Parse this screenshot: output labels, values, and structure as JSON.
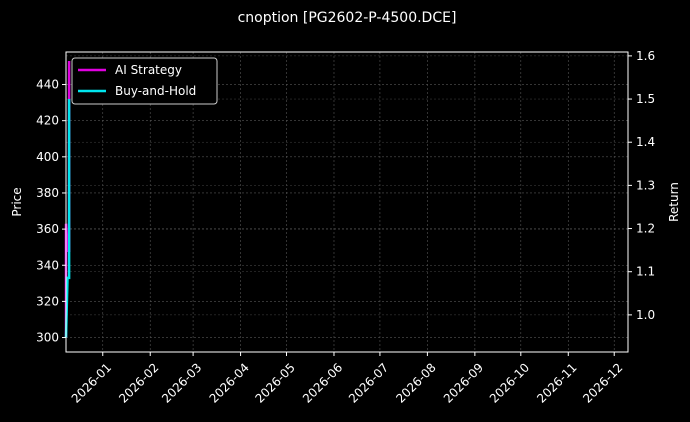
{
  "chart_data": {
    "type": "line",
    "title": "cnoption [PG2602-P-4500.DCE]",
    "ylabel": "Price",
    "y2label": "Return",
    "xlim": [
      "2025-12-08",
      "2026-12-10"
    ],
    "ylim": [
      292,
      458
    ],
    "y2lim": [
      0.914,
      1.609
    ],
    "x_ticks": [
      "2026-01",
      "2026-02",
      "2026-03",
      "2026-04",
      "2026-05",
      "2026-06",
      "2026-07",
      "2026-08",
      "2026-09",
      "2026-10",
      "2026-11",
      "2026-12"
    ],
    "y_ticks": [
      300,
      320,
      340,
      360,
      380,
      400,
      420,
      440
    ],
    "y2_ticks": [
      "1.0",
      "1.1",
      "1.2",
      "1.3",
      "1.4",
      "1.5",
      "1.6"
    ],
    "grid": true,
    "legend": "top-left",
    "series": [
      {
        "name": "AI Strategy",
        "color": "#e000e0",
        "x": [
          "2025-12-08",
          "2025-12-08",
          "2025-12-09",
          "2025-12-10",
          "2025-12-10"
        ],
        "y": [
          300,
          363,
          348,
          348,
          453
        ]
      },
      {
        "name": "Buy-and-Hold",
        "color": "#00e5ee",
        "x": [
          "2025-12-08",
          "2025-12-09",
          "2025-12-10",
          "2025-12-10"
        ],
        "y": [
          300,
          333,
          333,
          432
        ]
      }
    ]
  }
}
